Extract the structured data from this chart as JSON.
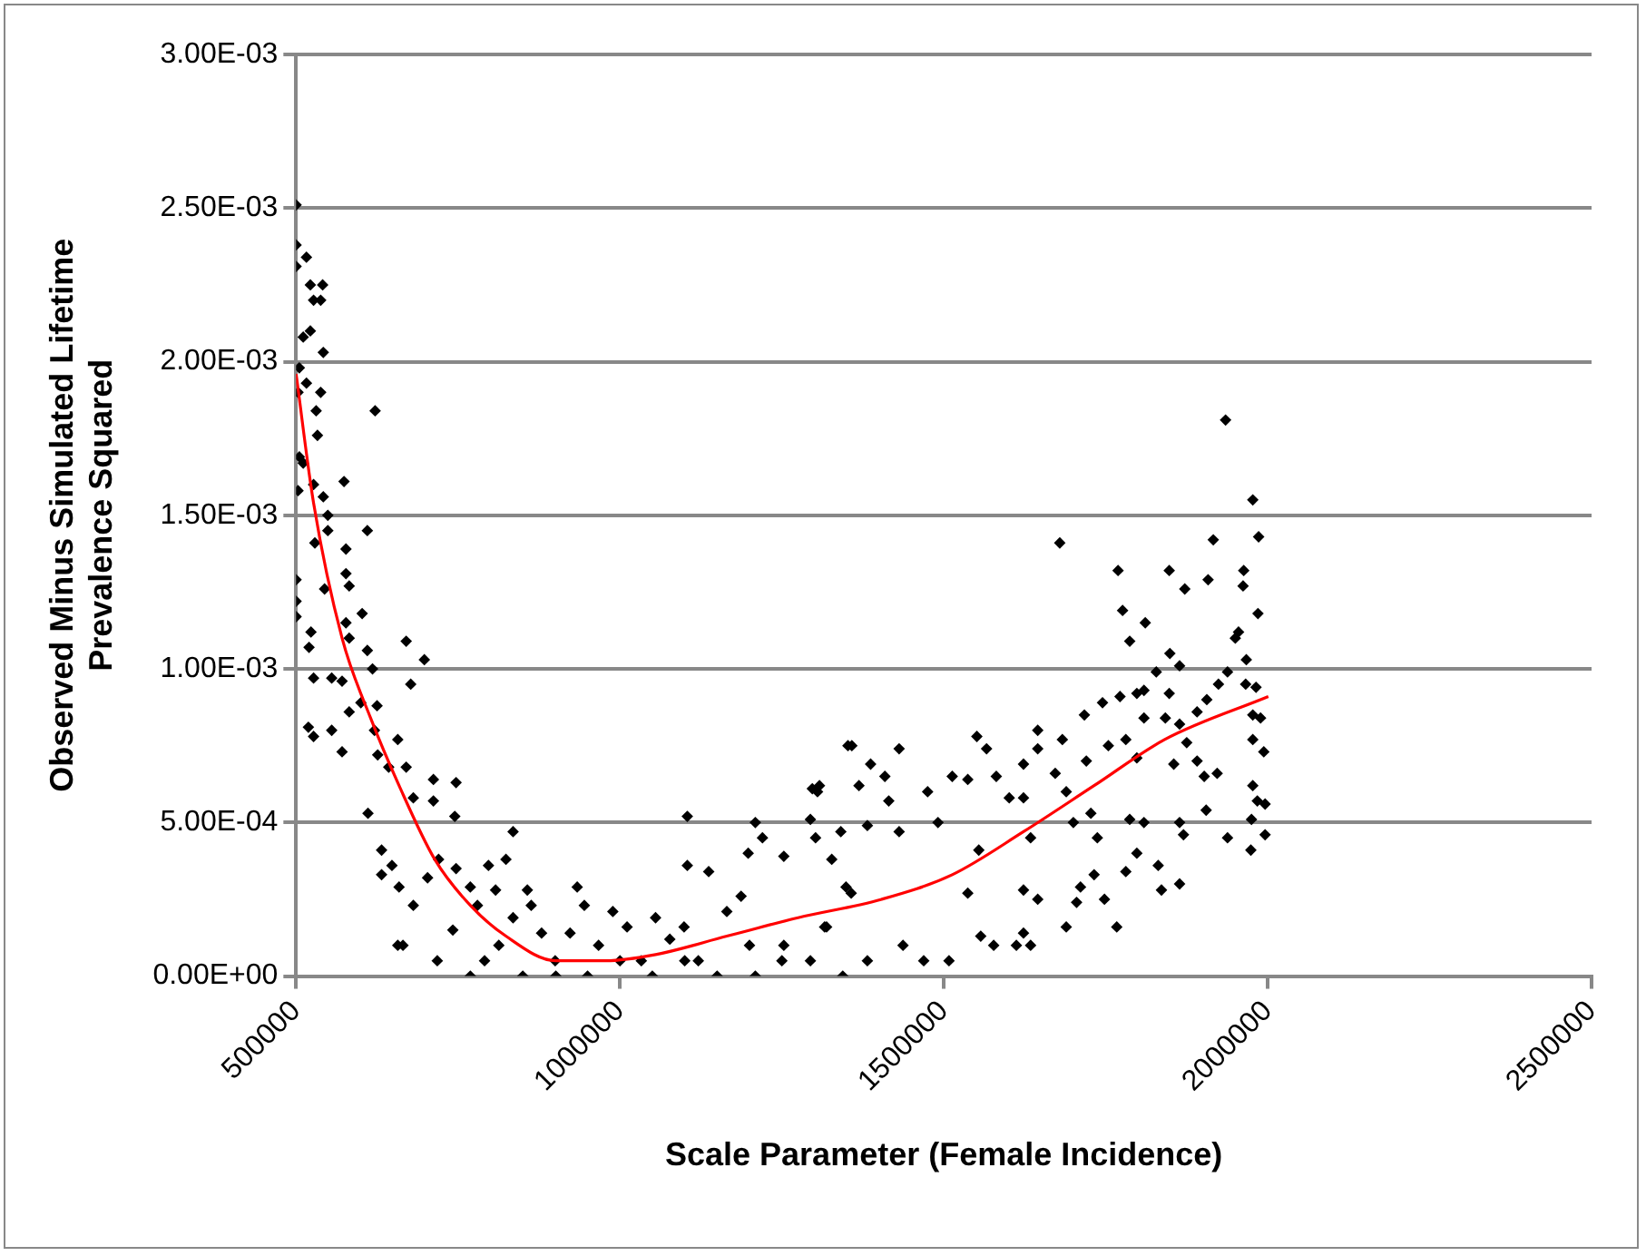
{
  "chart_data": {
    "type": "scatter",
    "xlabel": "Scale Parameter (Female Incidence)",
    "ylabel": "Observed Minus Simulated Lifetime Prevalence Squared",
    "xlim": [
      500000,
      2500000
    ],
    "xticks": [
      500000,
      1000000,
      1500000,
      2000000,
      2500000
    ],
    "ylim": [
      0,
      0.003
    ],
    "yticks": [
      {
        "value": 0,
        "label": "0.00E+00"
      },
      {
        "value": 0.0005,
        "label": "5.00E-04"
      },
      {
        "value": 0.001,
        "label": "1.00E-03"
      },
      {
        "value": 0.0015,
        "label": "1.50E-03"
      },
      {
        "value": 0.002,
        "label": "2.00E-03"
      },
      {
        "value": 0.0025,
        "label": "2.50E-03"
      },
      {
        "value": 0.003,
        "label": "3.00E-03"
      }
    ],
    "grid": "y",
    "legend": false,
    "series": [
      {
        "color": "#000000",
        "marker": "diamond",
        "x": [
          500000,
          500000,
          500000,
          516000,
          522000,
          541000,
          527000,
          538000,
          511000,
          522000,
          542000,
          505000,
          516000,
          503000,
          538000,
          531000,
          622000,
          533000,
          505000,
          511000,
          574000,
          503000,
          527000,
          542000,
          549000,
          610000,
          549000,
          529000,
          577000,
          577000,
          582000,
          500000,
          500000,
          500000,
          544000,
          602000,
          577000,
          523000,
          582000,
          520000,
          610000,
          670000,
          698000,
          618000,
          527000,
          555000,
          571000,
          677000,
          600000,
          625000,
          582000,
          519000,
          527000,
          555000,
          621000,
          657000,
          571000,
          626000,
          643000,
          670000,
          611000,
          712000,
          747000,
          681000,
          745000,
          712000,
          835000,
          632000,
          648000,
          632000,
          659000,
          681000,
          720000,
          703000,
          747000,
          769000,
          657000,
          665000,
          718000,
          742000,
          780000,
          797000,
          824000,
          808000,
          835000,
          769000,
          791000,
          813000,
          857000,
          863000,
          879000,
          901000,
          934000,
          945000,
          923000,
          967000,
          989000,
          1011000,
          1033000,
          1055000,
          1077000,
          1104000,
          1104000,
          1137000,
          1099000,
          1121000,
          1165000,
          1187000,
          1209000,
          1198000,
          1220000,
          1253000,
          1209000,
          1253000,
          1297000,
          1308000,
          1302000,
          1352000,
          1341000,
          1319000,
          1357000,
          850000,
          950000,
          1050000,
          1150000,
          1250000,
          1200000,
          1100000,
          1000000,
          900000,
          1305000,
          1294000,
          1358000,
          1431000,
          1387000,
          1409000,
          1369000,
          1415000,
          1431000,
          1382000,
          1327000,
          1349000,
          1316000,
          1294000,
          1344000,
          1382000,
          1437000,
          1469000,
          1508000,
          1475000,
          1513000,
          1537000,
          1491000,
          1551000,
          1566000,
          1581000,
          1554000,
          1537000,
          1557000,
          1577000,
          1612000,
          1601000,
          1623000,
          1645000,
          1645000,
          1683000,
          1679000,
          1623000,
          1634000,
          1623000,
          1623000,
          1634000,
          1645000,
          1672000,
          1689000,
          1700000,
          1689000,
          1705000,
          1711000,
          1717000,
          1720000,
          1727000,
          1732000,
          1737000,
          1745000,
          1754000,
          1748000,
          1767000,
          1769000,
          1776000,
          1811000,
          1787000,
          1772000,
          1781000,
          1798000,
          1798000,
          1809000,
          1809000,
          1787000,
          1809000,
          1781000,
          1798000,
          1831000,
          1836000,
          1864000,
          1828000,
          1849000,
          1864000,
          1848000,
          1872000,
          1848000,
          1842000,
          1864000,
          1855000,
          1875000,
          1891000,
          1902000,
          1922000,
          1891000,
          1906000,
          1924000,
          1938000,
          1864000,
          1870000,
          1905000,
          1938000,
          1908000,
          1916000,
          1935000,
          1963000,
          1962000,
          1977000,
          1986000,
          1985000,
          1955000,
          1950000,
          1967000,
          1966000,
          1982000,
          1977000,
          1989000,
          1977000,
          1994000,
          1977000,
          1984000,
          1996000,
          1975000,
          1996000,
          1974000
        ],
        "values": [
          0.00251,
          0.00238,
          0.00231,
          0.00234,
          0.00225,
          0.00225,
          0.0022,
          0.0022,
          0.00208,
          0.0021,
          0.00203,
          0.00198,
          0.00193,
          0.0019,
          0.0019,
          0.00184,
          0.00184,
          0.00176,
          0.00169,
          0.00167,
          0.00161,
          0.00158,
          0.0016,
          0.00156,
          0.0015,
          0.00145,
          0.00145,
          0.00141,
          0.00139,
          0.00131,
          0.00127,
          0.00129,
          0.00122,
          0.00117,
          0.00126,
          0.00118,
          0.00115,
          0.00112,
          0.0011,
          0.00107,
          0.00106,
          0.00109,
          0.00103,
          0.001,
          0.00097,
          0.00097,
          0.00096,
          0.00095,
          0.00089,
          0.00088,
          0.00086,
          0.00081,
          0.00078,
          0.0008,
          0.0008,
          0.00077,
          0.00073,
          0.00072,
          0.00068,
          0.00068,
          0.00053,
          0.00064,
          0.00063,
          0.00058,
          0.00052,
          0.00057,
          0.00047,
          0.00041,
          0.00036,
          0.00033,
          0.00029,
          0.00023,
          0.00038,
          0.00032,
          0.00035,
          0.00029,
          0.0001,
          0.0001,
          5e-05,
          0.00015,
          0.00023,
          0.00036,
          0.00038,
          0.00028,
          0.00019,
          0,
          5e-05,
          0.0001,
          0.00028,
          0.00023,
          0.00014,
          0,
          0.00029,
          0.00023,
          0.00014,
          0.0001,
          0.00021,
          0.00016,
          5e-05,
          0.00019,
          0.00012,
          0.00052,
          0.00036,
          0.00034,
          0.00016,
          5e-05,
          0.00021,
          0.00026,
          0.0005,
          0.0004,
          0.00045,
          0.00039,
          0,
          0.0001,
          0.00061,
          0.00062,
          0.00045,
          0.00075,
          0.00047,
          0.00016,
          0.00027,
          0,
          0,
          0,
          0,
          5e-05,
          0.0001,
          5e-05,
          5e-05,
          5e-05,
          0.0006,
          0.00051,
          0.00075,
          0.00074,
          0.00069,
          0.00065,
          0.00062,
          0.00057,
          0.00047,
          0.00049,
          0.00038,
          0.00029,
          0.00016,
          5e-05,
          0,
          5e-05,
          0.0001,
          5e-05,
          5e-05,
          0.0006,
          0.00065,
          0.00064,
          0.0005,
          0.00078,
          0.00074,
          0.00065,
          0.00041,
          0.00027,
          0.00013,
          0.0001,
          0.0001,
          0.00058,
          0.00069,
          0.0008,
          0.00074,
          0.00077,
          0.00141,
          0.00058,
          0.00045,
          0.00028,
          0.00014,
          0.0001,
          0.00025,
          0.00066,
          0.0006,
          0.0005,
          0.00016,
          0.00024,
          0.00029,
          0.00085,
          0.0007,
          0.00053,
          0.00033,
          0.00045,
          0.00089,
          0.00075,
          0.00025,
          0.00016,
          0.00132,
          0.00119,
          0.00115,
          0.00109,
          0.00091,
          0.00077,
          0.00071,
          0.00092,
          0.00093,
          0.00084,
          0.00051,
          0.0005,
          0.00034,
          0.0004,
          0.00036,
          0.00028,
          0.0003,
          0.00099,
          0.00105,
          0.00101,
          0.00132,
          0.00126,
          0.00092,
          0.00084,
          0.00082,
          0.00069,
          0.00076,
          0.0007,
          0.00065,
          0.00066,
          0.00086,
          0.0009,
          0.00095,
          0.00099,
          0.0005,
          0.00046,
          0.00054,
          0.00045,
          0.00129,
          0.00142,
          0.00181,
          0.00132,
          0.00127,
          0.00155,
          0.00143,
          0.00118,
          0.00112,
          0.0011,
          0.00103,
          0.00095,
          0.00094,
          0.00085,
          0.00084,
          0.00077,
          0.00073,
          0.00062,
          0.00057,
          0.00056,
          0.00051,
          0.00046,
          0.00041
        ]
      },
      {
        "type": "line",
        "color": "#ff0000",
        "marker": "none",
        "x": [
          500000,
          527000,
          571000,
          615000,
          659000,
          714000,
          769000,
          824000,
          901000,
          978000,
          1055000,
          1165000,
          1275000,
          1404000,
          1513000,
          1623000,
          1732000,
          1841000,
          2001000
        ],
        "values": [
          0.00196,
          0.00154,
          0.0011,
          0.00084,
          0.00062,
          0.00038,
          0.00023,
          0.00013,
          5e-05,
          5e-05,
          7e-05,
          0.00013,
          0.00019,
          0.00025,
          0.00033,
          0.00047,
          0.00062,
          0.00077,
          0.00091
        ]
      }
    ]
  }
}
